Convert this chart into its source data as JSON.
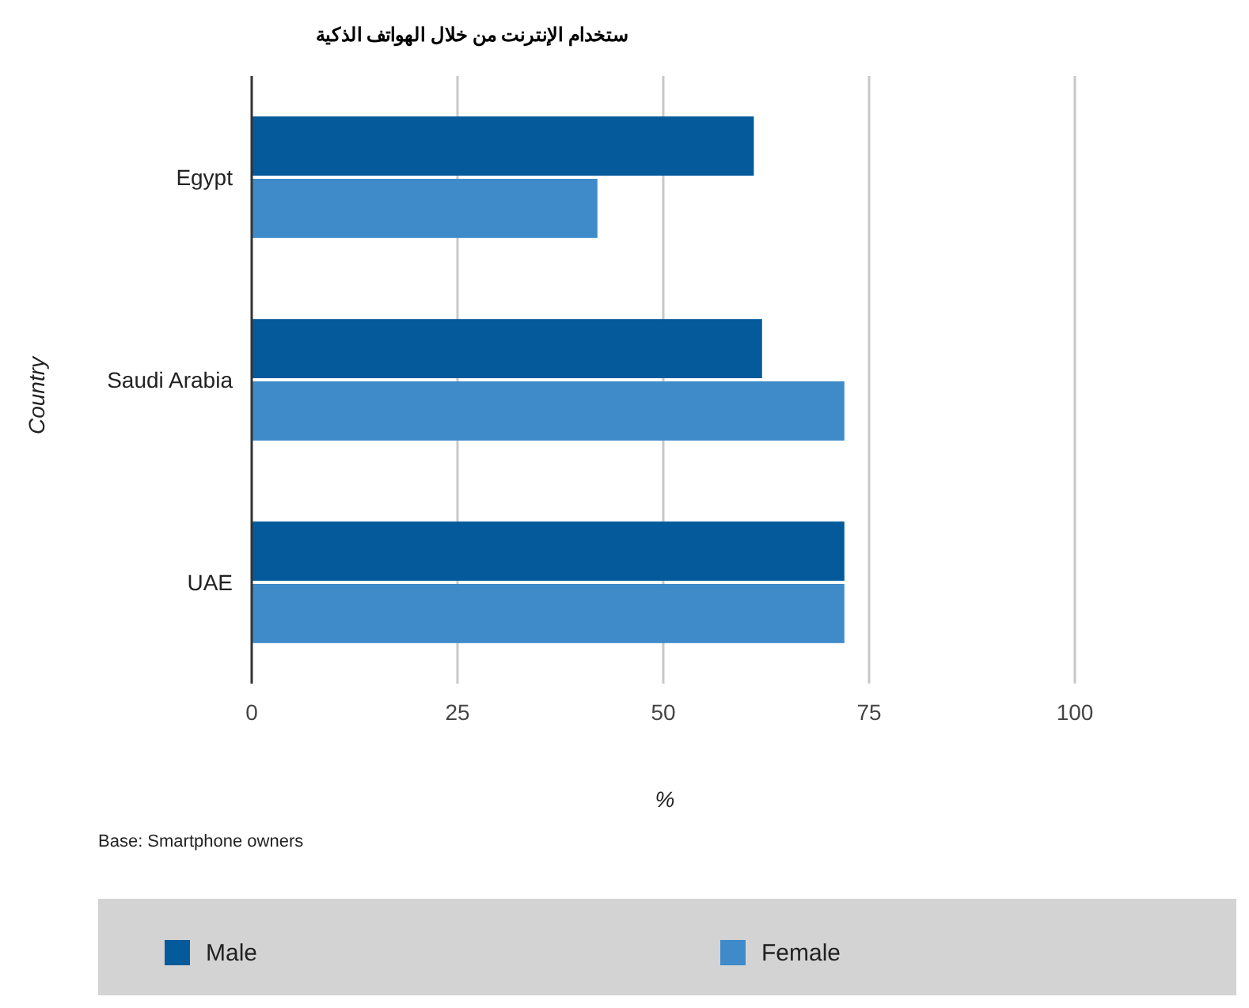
{
  "chart_data": {
    "type": "bar",
    "orientation": "horizontal",
    "title": "ستخدام الإنترنت من خلال الهواتف الذكية",
    "xlabel": "%",
    "ylabel": "Country",
    "categories": [
      "Egypt",
      "Saudi Arabia",
      "UAE"
    ],
    "series": [
      {
        "name": "Male",
        "color": "#045a9b",
        "values": [
          61,
          62,
          72
        ]
      },
      {
        "name": "Female",
        "color": "#3f8bc9",
        "values": [
          42,
          72,
          72
        ]
      }
    ],
    "xlim": [
      0,
      100
    ],
    "xticks": [
      0,
      25,
      50,
      75,
      100
    ],
    "grid": "x",
    "legend": "bottom",
    "annotations": [
      "Base: Smartphone owners"
    ]
  }
}
